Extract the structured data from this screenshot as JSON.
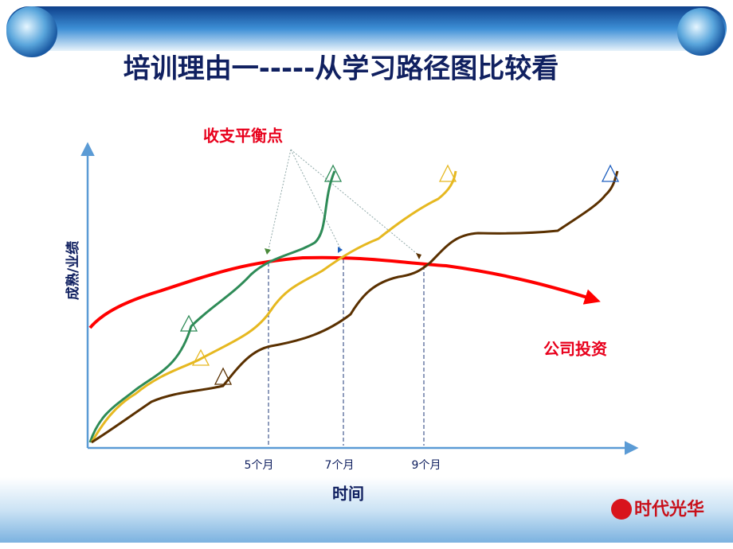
{
  "title": "培训理由一-----从学习路径图比较看",
  "annotation": "收支平衡点",
  "y_label": "成熟/业绩",
  "x_label": "时间",
  "x_marks": [
    "5个月",
    "7个月",
    "9个月"
  ],
  "investment_label": "公司投资",
  "logo": "时代光华"
}
